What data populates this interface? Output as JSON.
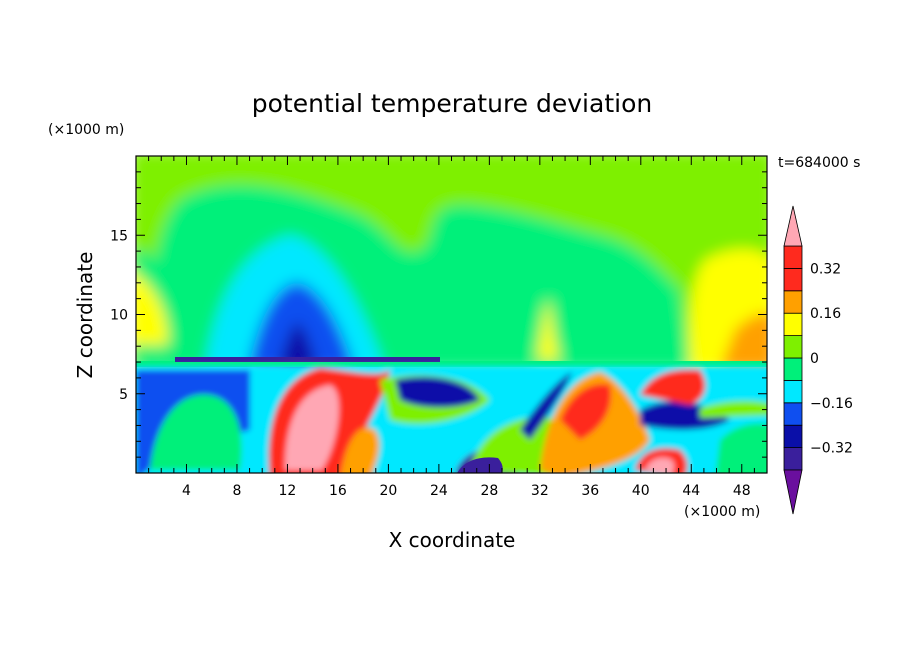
{
  "chart_data": {
    "type": "heatmap",
    "title": "potential temperature deviation",
    "xlabel": "X coordinate",
    "ylabel": "Z coordinate",
    "x_unit": "(×1000 m)",
    "y_unit": "(×1000 m)",
    "time_label": "t=684000 s",
    "xlim": [
      0,
      50
    ],
    "ylim": [
      0,
      20
    ],
    "x_ticks": [
      4,
      8,
      12,
      16,
      20,
      24,
      28,
      32,
      36,
      40,
      44,
      48
    ],
    "y_ticks": [
      5,
      10,
      15
    ],
    "colorbar": {
      "levels": [
        -0.4,
        -0.32,
        -0.24,
        -0.16,
        -0.08,
        0,
        0.08,
        0.16,
        0.24,
        0.32,
        0.4
      ],
      "tick_labels": [
        "0.32",
        "0.16",
        "0",
        "−0.16",
        "−0.32"
      ],
      "tick_values": [
        0.32,
        0.16,
        0,
        -0.16,
        -0.32
      ],
      "colors_low_to_high": [
        "#6a0f9e",
        "#3a1f9c",
        "#0a0fa8",
        "#0f4ff0",
        "#00e8ff",
        "#00f07a",
        "#7ef000",
        "#ffff00",
        "#ffa000",
        "#ff2a1e",
        "#ffa7b4"
      ],
      "extend": "both"
    },
    "field_summary": [
      {
        "x": [
          0,
          50
        ],
        "z": [
          7,
          20
        ],
        "value": 0.0,
        "note": "upper layer mostly near-zero (green)"
      },
      {
        "x": [
          8,
          18
        ],
        "z": [
          7,
          15
        ],
        "value": -0.2,
        "note": "cold dome (cyan to dark blue)"
      },
      {
        "x": [
          44,
          50
        ],
        "z": [
          7,
          14
        ],
        "value": 0.16,
        "note": "warm region (yellow/orange)"
      },
      {
        "x": [
          0,
          2
        ],
        "z": [
          8,
          13
        ],
        "value": 0.12,
        "note": "warm edge (yellow)"
      },
      {
        "x": [
          10,
          18
        ],
        "z": [
          0,
          7
        ],
        "value": 0.3,
        "note": "warm plume (red/pink)"
      },
      {
        "x": [
          32,
          46
        ],
        "z": [
          1,
          7
        ],
        "value": 0.2,
        "note": "mixed warm columns"
      },
      {
        "x": [
          24,
          30
        ],
        "z": [
          1,
          6
        ],
        "value": -0.28,
        "note": "cold pockets (dark blue)"
      }
    ]
  }
}
